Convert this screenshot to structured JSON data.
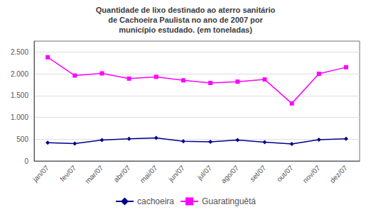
{
  "chart_data": {
    "type": "line",
    "title": "Quantidade de lixo destinado ao aterro sanitário\nde Cachoeira Paulista no ano de 2007 por\nmunicípio estudado. (em toneladas)",
    "categories": [
      "jan/07",
      "fev/07",
      "mar/07",
      "abr/07",
      "mai/07",
      "jun/07",
      "jul/07",
      "ago/07",
      "set/07",
      "out/07",
      "nov/07",
      "dez/07"
    ],
    "series": [
      {
        "name": "cachoeira",
        "color": "#00008B",
        "marker": "diamond",
        "line_style": "solid",
        "values": [
          420,
          400,
          480,
          510,
          530,
          450,
          440,
          480,
          430,
          390,
          490,
          510
        ]
      },
      {
        "name": "Guaratinguêtá",
        "color": "#FF00FF",
        "marker": "square",
        "line_style": "solid",
        "values": [
          2380,
          1960,
          2010,
          1890,
          1930,
          1850,
          1790,
          1820,
          1870,
          1320,
          2000,
          2150
        ]
      }
    ],
    "ylim": [
      0,
      2750
    ],
    "yticks": [
      0,
      500,
      {
        "value": 1000,
        "label": "1.000"
      },
      {
        "value": 1500,
        "label": "1.500"
      },
      {
        "value": 2000,
        "label": "2.000"
      },
      {
        "value": 2500,
        "label": "2.500"
      }
    ],
    "grid": true,
    "legend": "bottom"
  }
}
